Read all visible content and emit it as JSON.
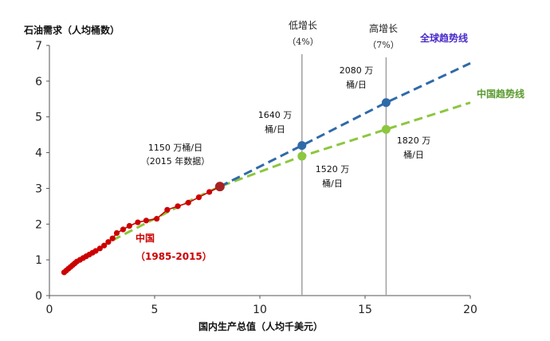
{
  "chart_data": {
    "type": "line",
    "ylabel": "石油需求（人均桶数）",
    "xlabel": "国内生产总值（人均千美元）",
    "xlim": [
      0,
      20
    ],
    "ylim": [
      0,
      7
    ],
    "xticks": [
      0,
      5,
      10,
      15,
      20
    ],
    "yticks": [
      0,
      1,
      2,
      3,
      4,
      5,
      6,
      7
    ],
    "grid": false,
    "colors": {
      "china": "#cc0000",
      "china_end": "#a52323",
      "global": "#2f6aa8",
      "china_trend": "#8dc63f",
      "vline": "#a0a0a0",
      "axis": "#555555",
      "global_label": "#4a2bc9",
      "china_trend_label": "#5a9a2e"
    },
    "series": [
      {
        "key": "china",
        "name": "中国",
        "name2": "（1985-2015）",
        "points": [
          [
            0.7,
            0.65
          ],
          [
            0.8,
            0.7
          ],
          [
            0.9,
            0.75
          ],
          [
            1.0,
            0.8
          ],
          [
            1.1,
            0.85
          ],
          [
            1.2,
            0.9
          ],
          [
            1.3,
            0.95
          ],
          [
            1.45,
            1.0
          ],
          [
            1.6,
            1.05
          ],
          [
            1.75,
            1.1
          ],
          [
            1.9,
            1.15
          ],
          [
            2.05,
            1.2
          ],
          [
            2.2,
            1.25
          ],
          [
            2.4,
            1.32
          ],
          [
            2.6,
            1.4
          ],
          [
            2.8,
            1.5
          ],
          [
            3.0,
            1.6
          ],
          [
            3.2,
            1.75
          ],
          [
            3.5,
            1.85
          ],
          [
            3.8,
            1.95
          ],
          [
            4.2,
            2.05
          ],
          [
            4.6,
            2.1
          ],
          [
            5.1,
            2.15
          ],
          [
            5.6,
            2.4
          ],
          [
            6.1,
            2.5
          ],
          [
            6.6,
            2.6
          ],
          [
            7.1,
            2.75
          ],
          [
            7.6,
            2.9
          ],
          [
            8.1,
            3.05
          ]
        ]
      },
      {
        "key": "global_trend",
        "name": "全球趋势线",
        "points": [
          [
            8.1,
            3.05
          ],
          [
            12.0,
            4.2
          ],
          [
            16.0,
            5.4
          ],
          [
            20.0,
            6.5
          ]
        ]
      },
      {
        "key": "china_trend",
        "name": "中国趋势线",
        "points": [
          [
            3.0,
            1.55
          ],
          [
            4.0,
            1.85
          ],
          [
            5.0,
            2.15
          ],
          [
            6.0,
            2.45
          ],
          [
            7.0,
            2.75
          ],
          [
            8.1,
            3.05
          ],
          [
            12.0,
            3.9
          ],
          [
            16.0,
            4.65
          ],
          [
            20.0,
            5.4
          ]
        ]
      }
    ],
    "markers": [
      {
        "key": "end2015",
        "x": 8.1,
        "y": 3.05,
        "label1": "1150 万桶/日",
        "label2": "（2015 年数据）"
      },
      {
        "key": "low_global",
        "x": 12.0,
        "y": 4.2,
        "label1": "1640 万",
        "label2": "桶/日"
      },
      {
        "key": "low_china",
        "x": 12.0,
        "y": 3.9,
        "label1": "1520 万",
        "label2": "桶/日"
      },
      {
        "key": "high_global",
        "x": 16.0,
        "y": 5.4,
        "label1": "2080 万",
        "label2": "桶/日"
      },
      {
        "key": "high_china",
        "x": 16.0,
        "y": 4.65,
        "label1": "1820 万",
        "label2": "桶/日"
      }
    ],
    "scenarios": [
      {
        "key": "low",
        "x": 12.0,
        "label1": "低增长",
        "label2": "（4%）"
      },
      {
        "key": "high",
        "x": 16.0,
        "label1": "高增长",
        "label2": "（7%）"
      }
    ]
  }
}
